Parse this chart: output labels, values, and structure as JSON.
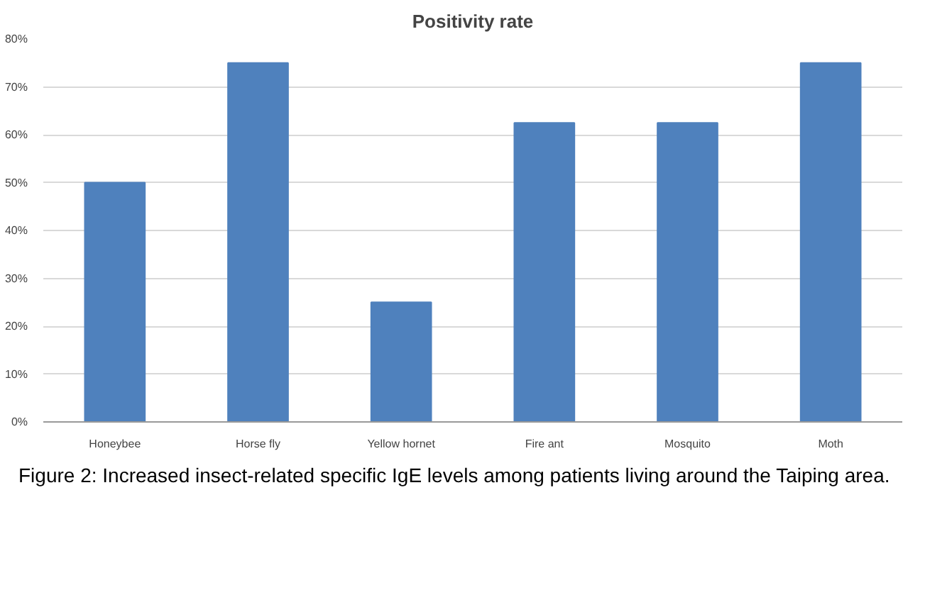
{
  "chart_data": {
    "type": "bar",
    "title": "Positivity rate",
    "categories": [
      "Honeybee",
      "Horse fly",
      "Yellow hornet",
      "Fire ant",
      "Mosquito",
      "Moth"
    ],
    "values": [
      50,
      75,
      25,
      62.5,
      62.5,
      75
    ],
    "color": "#4f81bd",
    "ylim": [
      0,
      80
    ],
    "yticks": [
      {
        "value": 0,
        "label": "0%"
      },
      {
        "value": 10,
        "label": "10%"
      },
      {
        "value": 20,
        "label": "20%"
      },
      {
        "value": 30,
        "label": "30%"
      },
      {
        "value": 40,
        "label": "40%"
      },
      {
        "value": 50,
        "label": "50%"
      },
      {
        "value": 60,
        "label": "60%"
      },
      {
        "value": 70,
        "label": "70%"
      },
      {
        "value": 80,
        "label": "80%"
      }
    ],
    "grid": "y",
    "annotations": [
      "Figure 2: Increased insect-related specific IgE levels among patients living around the Taiping area."
    ]
  }
}
